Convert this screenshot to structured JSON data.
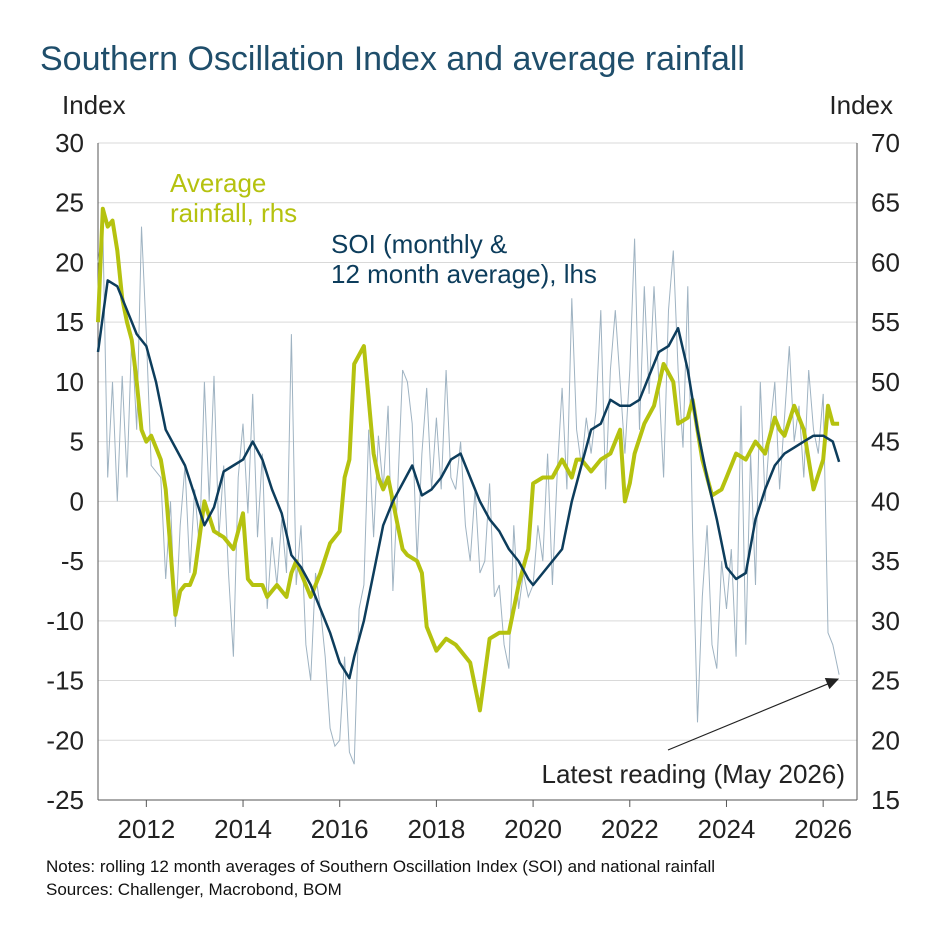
{
  "title": "Southern Oscillation Index and average rainfall",
  "left_axis_unit": "Index",
  "right_axis_unit": "Index",
  "notes": "Notes: rolling 12 month averages of Southern Oscillation Index (SOI) and national rainfall",
  "sources": "Sources: Challenger, Macrobond, BOM",
  "colors": {
    "soi_avg": "#0d3d5c",
    "soi_monthly": "#9fb3c2",
    "rainfall": "#b5c20f",
    "grid": "#d9d9d9",
    "title": "#1f4e6b"
  },
  "chart_data": {
    "type": "line",
    "title": "Southern Oscillation Index and average rainfall",
    "xlabel": "",
    "ylabel": "Index",
    "ylabel_right": "Index",
    "xlim": [
      2011.0,
      2026.7
    ],
    "ylim": [
      -25,
      30
    ],
    "ylim_right": [
      15,
      70
    ],
    "x_ticks": [
      "2012",
      "2014",
      "2016",
      "2018",
      "2020",
      "2022",
      "2024",
      "2026"
    ],
    "y_ticks_left": [
      "30",
      "25",
      "20",
      "15",
      "10",
      "5",
      "0",
      "-5",
      "-10",
      "-15",
      "-20",
      "-25"
    ],
    "y_ticks_right": [
      "70",
      "65",
      "60",
      "55",
      "50",
      "45",
      "40",
      "35",
      "30",
      "25",
      "20",
      "15"
    ],
    "grid": true,
    "annotations": [
      {
        "text": "Average rainfall, rhs",
        "lines": [
          "Average",
          "rainfall, rhs"
        ],
        "color": "rainfall"
      },
      {
        "text": "SOI (monthly & 12 month average), lhs",
        "lines": [
          "SOI (monthly &",
          "12 month average), lhs"
        ],
        "color": "soi_avg"
      },
      {
        "text": "Latest reading (May 2026)",
        "arrow_to": [
          2026.33,
          -14.5
        ]
      }
    ],
    "series": [
      {
        "name": "SOI 12 month average",
        "axis": "left",
        "x": [
          2011.0,
          2011.2,
          2011.4,
          2011.6,
          2011.8,
          2012.0,
          2012.2,
          2012.4,
          2012.6,
          2012.8,
          2013.0,
          2013.2,
          2013.4,
          2013.6,
          2013.8,
          2014.0,
          2014.2,
          2014.4,
          2014.6,
          2014.8,
          2015.0,
          2015.2,
          2015.4,
          2015.6,
          2015.8,
          2016.0,
          2016.2,
          2016.3,
          2016.5,
          2016.7,
          2016.9,
          2017.1,
          2017.3,
          2017.5,
          2017.7,
          2017.9,
          2018.1,
          2018.3,
          2018.5,
          2018.7,
          2018.9,
          2019.1,
          2019.3,
          2019.5,
          2019.7,
          2019.9,
          2020.0,
          2020.2,
          2020.4,
          2020.6,
          2020.8,
          2021.0,
          2021.2,
          2021.4,
          2021.6,
          2021.8,
          2022.0,
          2022.2,
          2022.4,
          2022.6,
          2022.8,
          2023.0,
          2023.2,
          2023.4,
          2023.6,
          2023.8,
          2024.0,
          2024.2,
          2024.4,
          2024.6,
          2024.8,
          2025.0,
          2025.2,
          2025.4,
          2025.6,
          2025.8,
          2026.0,
          2026.2,
          2026.33
        ],
        "values": [
          12.5,
          18.5,
          18.0,
          16.0,
          14.0,
          13.0,
          10.0,
          6.0,
          4.5,
          3.0,
          0.5,
          -2.0,
          -0.5,
          2.5,
          3.0,
          3.5,
          5.0,
          3.5,
          1.0,
          -1.0,
          -4.5,
          -5.5,
          -7.0,
          -9.0,
          -11.0,
          -13.5,
          -14.8,
          -13.0,
          -10.0,
          -6.0,
          -2.0,
          0.0,
          1.5,
          3.0,
          0.5,
          1.0,
          2.0,
          3.5,
          4.0,
          2.0,
          0.0,
          -1.5,
          -2.5,
          -4.0,
          -5.0,
          -6.5,
          -7.0,
          -6.0,
          -5.0,
          -4.0,
          0.0,
          3.0,
          6.0,
          6.5,
          8.5,
          8.0,
          8.0,
          8.5,
          10.5,
          12.5,
          13.0,
          14.5,
          11.0,
          6.0,
          2.0,
          -1.5,
          -5.5,
          -6.5,
          -6.0,
          -1.5,
          1.0,
          3.0,
          4.0,
          4.5,
          5.0,
          5.5,
          5.5,
          5.0,
          3.3
        ]
      },
      {
        "name": "SOI monthly",
        "axis": "left",
        "x": [
          2011.0,
          2011.1,
          2011.2,
          2011.3,
          2011.4,
          2011.5,
          2011.6,
          2011.7,
          2011.8,
          2011.9,
          2012.0,
          2012.1,
          2012.2,
          2012.3,
          2012.4,
          2012.5,
          2012.6,
          2012.7,
          2012.8,
          2012.9,
          2013.0,
          2013.1,
          2013.2,
          2013.3,
          2013.4,
          2013.5,
          2013.6,
          2013.7,
          2013.8,
          2013.9,
          2014.0,
          2014.1,
          2014.2,
          2014.3,
          2014.4,
          2014.5,
          2014.6,
          2014.7,
          2014.8,
          2014.9,
          2015.0,
          2015.1,
          2015.2,
          2015.3,
          2015.4,
          2015.5,
          2015.6,
          2015.7,
          2015.8,
          2015.9,
          2016.0,
          2016.1,
          2016.2,
          2016.3,
          2016.4,
          2016.5,
          2016.6,
          2016.7,
          2016.8,
          2016.9,
          2017.0,
          2017.1,
          2017.2,
          2017.3,
          2017.4,
          2017.5,
          2017.6,
          2017.7,
          2017.8,
          2017.9,
          2018.0,
          2018.1,
          2018.2,
          2018.3,
          2018.4,
          2018.5,
          2018.6,
          2018.7,
          2018.8,
          2018.9,
          2019.0,
          2019.1,
          2019.2,
          2019.3,
          2019.4,
          2019.5,
          2019.6,
          2019.7,
          2019.8,
          2019.9,
          2020.0,
          2020.1,
          2020.2,
          2020.3,
          2020.4,
          2020.5,
          2020.6,
          2020.7,
          2020.8,
          2020.9,
          2021.0,
          2021.1,
          2021.2,
          2021.3,
          2021.4,
          2021.5,
          2021.6,
          2021.7,
          2021.8,
          2021.9,
          2022.0,
          2022.1,
          2022.2,
          2022.3,
          2022.4,
          2022.5,
          2022.6,
          2022.7,
          2022.8,
          2022.9,
          2023.0,
          2023.1,
          2023.2,
          2023.3,
          2023.4,
          2023.5,
          2023.6,
          2023.7,
          2023.8,
          2023.9,
          2024.0,
          2024.1,
          2024.2,
          2024.3,
          2024.4,
          2024.5,
          2024.6,
          2024.7,
          2024.8,
          2024.9,
          2025.0,
          2025.1,
          2025.2,
          2025.3,
          2025.4,
          2025.5,
          2025.6,
          2025.7,
          2025.8,
          2025.9,
          2026.0,
          2026.1,
          2026.2,
          2026.33
        ],
        "values": [
          20.0,
          23.0,
          2.0,
          10.0,
          0.0,
          10.5,
          2.0,
          14.0,
          6.0,
          23.0,
          14.0,
          3.0,
          2.5,
          2.0,
          -6.5,
          0.0,
          -10.5,
          -2.0,
          3.0,
          -6.0,
          1.0,
          -4.0,
          10.0,
          0.0,
          10.5,
          -3.0,
          3.0,
          -6.0,
          -13.0,
          2.0,
          6.5,
          -1.0,
          9.0,
          -3.0,
          4.0,
          -9.0,
          -3.0,
          -7.0,
          -1.5,
          -6.0,
          14.0,
          -7.0,
          -2.0,
          -12.0,
          -15.0,
          -6.0,
          -9.0,
          -13.0,
          -19.0,
          -20.5,
          -20.0,
          -13.0,
          -21.0,
          -22.0,
          -9.0,
          -7.0,
          6.0,
          -3.0,
          5.5,
          1.0,
          8.0,
          -7.5,
          1.0,
          11.0,
          10.0,
          6.5,
          -5.0,
          4.0,
          9.5,
          1.0,
          7.0,
          1.0,
          11.0,
          2.0,
          1.0,
          5.0,
          -2.0,
          -5.0,
          1.0,
          -6.0,
          -5.0,
          1.5,
          -8.0,
          -7.0,
          -12.0,
          -14.0,
          -2.0,
          -9.0,
          -6.0,
          -8.0,
          -7.0,
          -2.0,
          -5.0,
          4.0,
          -7.0,
          2.5,
          9.5,
          1.0,
          17.0,
          6.0,
          3.0,
          7.0,
          4.0,
          7.5,
          16.0,
          1.0,
          11.0,
          16.0,
          10.0,
          4.0,
          11.0,
          22.0,
          6.0,
          18.0,
          9.0,
          18.0,
          10.0,
          2.0,
          16.0,
          21.0,
          11.0,
          4.5,
          18.0,
          -2.5,
          -18.5,
          -8.0,
          -2.0,
          -12.0,
          -14.0,
          -5.0,
          -9.0,
          -4.0,
          -13.0,
          8.0,
          -12.0,
          4.0,
          -7.0,
          10.0,
          0.0,
          6.0,
          10.0,
          1.0,
          7.0,
          13.0,
          5.0,
          8.0,
          2.0,
          11.0,
          6.0,
          4.0,
          9.0,
          -11.0,
          -12.0,
          -14.5
        ]
      },
      {
        "name": "Average rainfall",
        "axis": "right",
        "x": [
          2011.0,
          2011.1,
          2011.2,
          2011.3,
          2011.4,
          2011.5,
          2011.6,
          2011.7,
          2011.8,
          2011.9,
          2012.0,
          2012.1,
          2012.2,
          2012.3,
          2012.4,
          2012.5,
          2012.6,
          2012.7,
          2012.8,
          2012.9,
          2013.0,
          2013.2,
          2013.4,
          2013.6,
          2013.8,
          2014.0,
          2014.1,
          2014.2,
          2014.3,
          2014.4,
          2014.5,
          2014.7,
          2014.9,
          2015.0,
          2015.1,
          2015.2,
          2015.4,
          2015.6,
          2015.8,
          2016.0,
          2016.1,
          2016.2,
          2016.3,
          2016.5,
          2016.7,
          2016.8,
          2016.9,
          2017.0,
          2017.2,
          2017.3,
          2017.4,
          2017.6,
          2017.7,
          2017.8,
          2018.0,
          2018.2,
          2018.4,
          2018.5,
          2018.7,
          2018.9,
          2019.1,
          2019.3,
          2019.5,
          2019.7,
          2019.9,
          2020.0,
          2020.2,
          2020.4,
          2020.6,
          2020.8,
          2020.9,
          2021.0,
          2021.2,
          2021.4,
          2021.6,
          2021.8,
          2021.9,
          2022.0,
          2022.1,
          2022.3,
          2022.5,
          2022.7,
          2022.9,
          2023.0,
          2023.2,
          2023.3,
          2023.5,
          2023.7,
          2023.9,
          2024.0,
          2024.2,
          2024.4,
          2024.6,
          2024.8,
          2025.0,
          2025.1,
          2025.2,
          2025.4,
          2025.6,
          2025.8,
          2026.0,
          2026.1,
          2026.2,
          2026.33
        ],
        "values": [
          55.0,
          64.5,
          63.0,
          63.5,
          61.0,
          57.0,
          55.0,
          53.5,
          50.0,
          46.0,
          45.0,
          45.5,
          44.5,
          43.5,
          41.0,
          36.0,
          30.5,
          32.5,
          33.0,
          33.0,
          34.0,
          40.0,
          37.5,
          37.0,
          36.0,
          39.0,
          33.5,
          33.0,
          33.0,
          33.0,
          32.0,
          33.0,
          32.0,
          34.0,
          35.0,
          34.0,
          32.0,
          34.0,
          36.5,
          37.5,
          42.0,
          43.5,
          51.5,
          53.0,
          44.0,
          42.0,
          41.0,
          42.0,
          38.0,
          36.0,
          35.5,
          35.0,
          34.0,
          29.5,
          27.5,
          28.5,
          28.0,
          27.5,
          26.5,
          22.5,
          28.5,
          29.0,
          29.0,
          33.0,
          36.0,
          41.5,
          42.0,
          42.0,
          43.5,
          42.0,
          43.5,
          43.5,
          42.5,
          43.5,
          44.0,
          46.0,
          40.0,
          41.5,
          44.0,
          46.5,
          48.0,
          51.5,
          50.0,
          46.5,
          47.0,
          48.5,
          43.5,
          40.5,
          41.0,
          42.0,
          44.0,
          43.5,
          45.0,
          44.0,
          47.0,
          46.0,
          45.5,
          48.0,
          46.0,
          41.0,
          43.5,
          48.0,
          46.5,
          46.5
        ]
      }
    ]
  }
}
